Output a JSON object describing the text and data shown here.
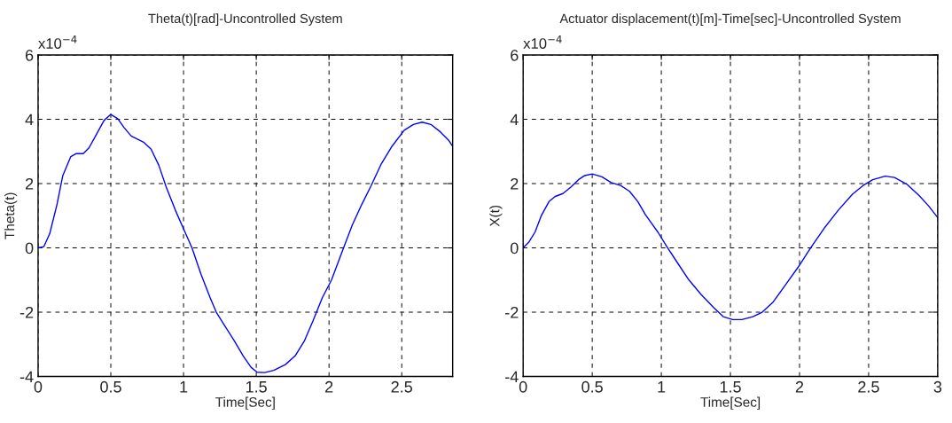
{
  "chart_data": [
    {
      "type": "line",
      "title": "Theta(t)[rad]-Uncontrolled System",
      "xlabel": "Time[Sec]",
      "ylabel": "Theta(t)",
      "annotations": [
        "x10$^{−4}$"
      ],
      "xlim": [
        0,
        2.85
      ],
      "xticks": [
        0,
        0.5,
        1,
        1.5,
        2,
        2.5
      ],
      "ylim": [
        -4,
        6
      ],
      "yticks": [
        -4,
        -2,
        0,
        2,
        4,
        6
      ],
      "grid": true,
      "series": [
        {
          "color": "#0000ff",
          "x": [
            0,
            0.04,
            0.08,
            0.13,
            0.17,
            0.225,
            0.26,
            0.31,
            0.35,
            0.4,
            0.454,
            0.5,
            0.548,
            0.59,
            0.64,
            0.683,
            0.725,
            0.777,
            0.83,
            0.881,
            0.944,
            1.006,
            1.058,
            1.12,
            1.183,
            1.225,
            1.287,
            1.35,
            1.41,
            1.465,
            1.506,
            1.558,
            1.62,
            1.7,
            1.767,
            1.83,
            1.89,
            1.954,
            2.017,
            2.1,
            2.16,
            2.225,
            2.29,
            2.36,
            2.433,
            2.517,
            2.58,
            2.64,
            2.7,
            2.765,
            2.82,
            2.85
          ],
          "values": [
            0,
            0.04,
            0.44,
            1.35,
            2.25,
            2.84,
            2.93,
            2.93,
            3.11,
            3.52,
            3.97,
            4.15,
            4.02,
            3.75,
            3.48,
            3.38,
            3.29,
            3.07,
            2.57,
            1.89,
            1.17,
            0.53,
            0,
            -0.82,
            -1.55,
            -2.0,
            -2.45,
            -2.9,
            -3.36,
            -3.72,
            -3.87,
            -3.88,
            -3.81,
            -3.63,
            -3.36,
            -2.9,
            -2.27,
            -1.55,
            -1.0,
            0,
            0.71,
            1.35,
            1.94,
            2.62,
            3.16,
            3.66,
            3.84,
            3.91,
            3.84,
            3.61,
            3.36,
            3.16
          ]
        }
      ]
    },
    {
      "type": "line",
      "title": "Actuator displacement(t)[m]-Time[sec]-Uncontrolled System",
      "xlabel": "Time[Sec]",
      "ylabel": "X(t)",
      "annotations": [
        "x10$^{−4}$"
      ],
      "xlim": [
        0,
        3
      ],
      "xticks": [
        0,
        0.5,
        1,
        1.5,
        2,
        2.5,
        3
      ],
      "ylim": [
        -4,
        6
      ],
      "yticks": [
        -4,
        -2,
        0,
        2,
        4,
        6
      ],
      "grid": true,
      "series": [
        {
          "color": "#0000ff",
          "x": [
            0,
            0.04,
            0.086,
            0.13,
            0.187,
            0.232,
            0.288,
            0.345,
            0.4,
            0.446,
            0.5,
            0.57,
            0.637,
            0.705,
            0.77,
            0.83,
            0.885,
            0.975,
            1.04,
            1.11,
            1.2,
            1.29,
            1.38,
            1.448,
            1.516,
            1.583,
            1.662,
            1.73,
            1.81,
            1.9,
            1.99,
            2.08,
            2.18,
            2.28,
            2.383,
            2.46,
            2.53,
            2.62,
            2.687,
            2.777,
            2.867,
            2.935,
            3.0
          ],
          "values": [
            0,
            0.17,
            0.49,
            0.99,
            1.44,
            1.6,
            1.69,
            1.89,
            2.12,
            2.25,
            2.3,
            2.21,
            2.03,
            1.94,
            1.76,
            1.44,
            1.03,
            0.49,
            0.04,
            -0.42,
            -1.0,
            -1.46,
            -1.86,
            -2.14,
            -2.23,
            -2.23,
            -2.14,
            -2.0,
            -1.68,
            -1.14,
            -0.6,
            0,
            0.62,
            1.17,
            1.67,
            1.94,
            2.12,
            2.23,
            2.19,
            1.98,
            1.62,
            1.3,
            0.94
          ]
        }
      ]
    }
  ]
}
